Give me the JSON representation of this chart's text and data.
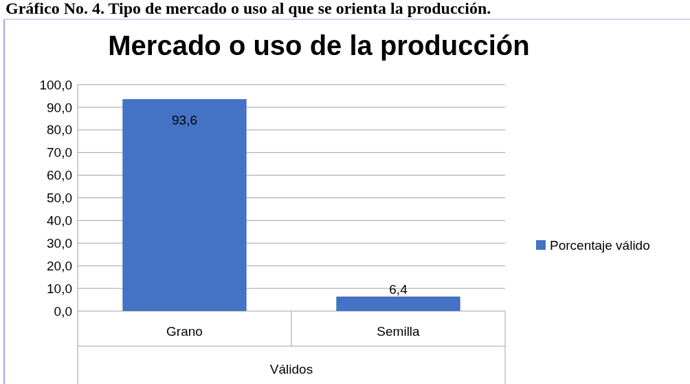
{
  "chart_data": {
    "type": "bar",
    "title": "Mercado o uso de la producción",
    "annotations": [
      "Gráfico No. 4. Tipo de mercado o uso al que se orienta la producción."
    ],
    "xlabel": "Válidos",
    "categories": [
      "Grano",
      "Semilla"
    ],
    "series": [
      {
        "name": "Porcentaje válido",
        "color": "#4472c4",
        "values": [
          93.6,
          6.4
        ],
        "value_labels": [
          "93,6",
          "6,4"
        ]
      }
    ],
    "ylim": [
      0,
      100
    ],
    "yticks": [
      {
        "value": 0,
        "label": "0,0"
      },
      {
        "value": 10,
        "label": "10,0"
      },
      {
        "value": 20,
        "label": "20,0"
      },
      {
        "value": 30,
        "label": "30,0"
      },
      {
        "value": 40,
        "label": "40,0"
      },
      {
        "value": 50,
        "label": "50,0"
      },
      {
        "value": 60,
        "label": "60,0"
      },
      {
        "value": 70,
        "label": "70,0"
      },
      {
        "value": 80,
        "label": "80,0"
      },
      {
        "value": 90,
        "label": "90,0"
      },
      {
        "value": 100,
        "label": "100,0"
      }
    ],
    "grid": "y",
    "legend": "right"
  }
}
